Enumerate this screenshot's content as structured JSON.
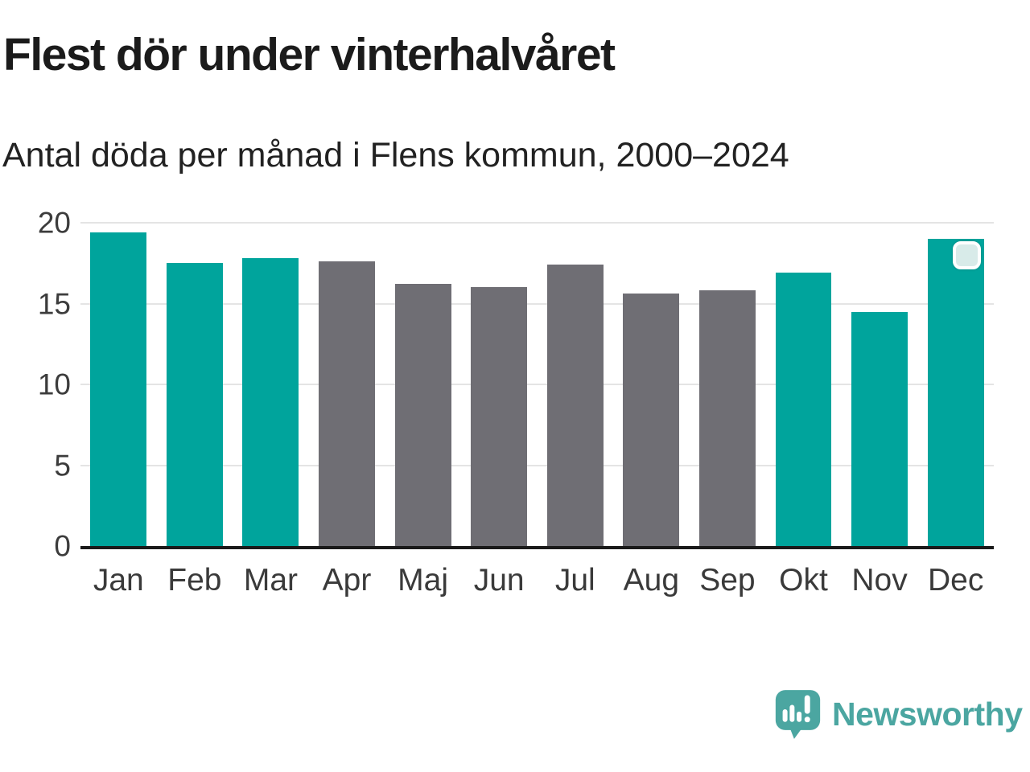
{
  "header": {
    "title": "Flest dör under vinterhalvåret",
    "subtitle": "Antal döda per månad i Flens kommun, 2000–2024"
  },
  "chart_data": {
    "type": "bar",
    "title": "Flest dör under vinterhalvåret",
    "subtitle": "Antal döda per månad i Flens kommun, 2000–2024",
    "categories": [
      "Jan",
      "Feb",
      "Mar",
      "Apr",
      "Maj",
      "Jun",
      "Jul",
      "Aug",
      "Sep",
      "Okt",
      "Nov",
      "Dec"
    ],
    "values": [
      19.4,
      17.5,
      17.8,
      17.6,
      16.2,
      16.0,
      17.4,
      15.6,
      15.8,
      16.9,
      14.5,
      19.0
    ],
    "bar_colors": [
      "#00A49C",
      "#00A49C",
      "#00A49C",
      "#6F6E74",
      "#6F6E74",
      "#6F6E74",
      "#6F6E74",
      "#6F6E74",
      "#6F6E74",
      "#00A49C",
      "#00A49C",
      "#00A49C"
    ],
    "ylim": [
      0,
      20
    ],
    "yticks": [
      20,
      15,
      10,
      5,
      0
    ],
    "gridline_values": [
      20,
      15,
      10,
      5
    ],
    "grid": true,
    "legend": "none",
    "marker_month": "Dec",
    "xlabel": "",
    "ylabel": ""
  },
  "colors": {
    "teal": "#00A49C",
    "gray": "#6F6E74",
    "grid": "#E4E4E4",
    "axis": "#1A1A1A",
    "badge_fill": "#D8EBE9",
    "badge_border": "#FFFFFF",
    "logo_teal": "#4BA6A1"
  },
  "footer": {
    "brand": "Newsworthy"
  }
}
